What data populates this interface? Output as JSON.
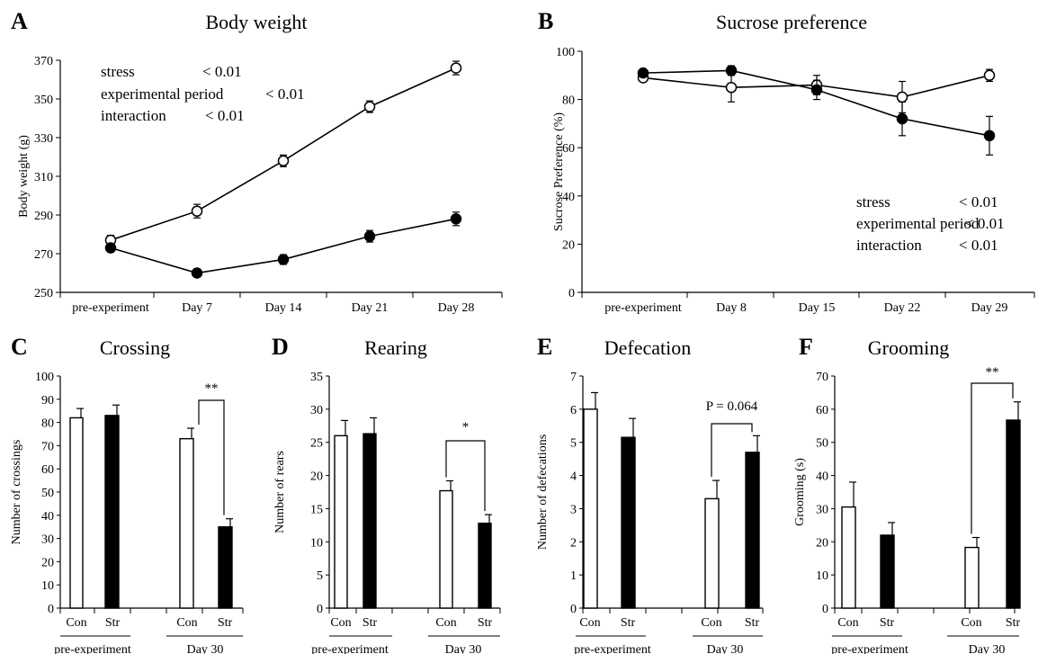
{
  "figure": "multi-panel",
  "chart_data": [
    {
      "panel": "A",
      "type": "line",
      "title": "Body weight",
      "ylabel": "Body weight (g)",
      "ylim": [
        250,
        370
      ],
      "yticks": [
        250,
        270,
        290,
        310,
        330,
        350,
        370
      ],
      "categories": [
        "pre-experiment",
        "Day 7",
        "Day 14",
        "Day 21",
        "Day 28"
      ],
      "series": [
        {
          "marker": "open",
          "values": [
            277,
            292,
            318,
            346,
            366
          ],
          "errors": [
            2.5,
            3.5,
            3,
            3,
            3.5
          ]
        },
        {
          "marker": "filled",
          "values": [
            273,
            260,
            267,
            279,
            288
          ],
          "errors": [
            2,
            2,
            2.5,
            3,
            3.5
          ]
        }
      ],
      "stats": [
        {
          "label": "stress",
          "value": "< 0.01"
        },
        {
          "label": "experimental period",
          "value": "< 0.01"
        },
        {
          "label": "interaction",
          "value": "< 0.01"
        }
      ],
      "grid": false
    },
    {
      "panel": "B",
      "type": "line",
      "title": "Sucrose preference",
      "ylabel": "Sucrose Preference (%)",
      "ylim": [
        0,
        100
      ],
      "yticks": [
        0,
        20,
        40,
        60,
        80,
        100
      ],
      "categories": [
        "pre-experiment",
        "Day 8",
        "Day 15",
        "Day 22",
        "Day 29"
      ],
      "series": [
        {
          "marker": "open",
          "values": [
            89,
            85,
            86,
            81,
            90
          ],
          "errors": [
            1.5,
            6,
            4,
            6.5,
            2.5
          ]
        },
        {
          "marker": "filled",
          "values": [
            91,
            92,
            84,
            72,
            65
          ],
          "errors": [
            1.5,
            2,
            4,
            7,
            8
          ]
        }
      ],
      "stats": [
        {
          "label": "stress",
          "value": "< 0.01"
        },
        {
          "label": "experimental period",
          "value": "< 0.01"
        },
        {
          "label": "interaction",
          "value": "< 0.01"
        }
      ],
      "grid": false
    },
    {
      "panel": "C",
      "type": "bar",
      "title": "Crossing",
      "ylabel": "Number of crossings",
      "ylim": [
        0,
        100
      ],
      "yticks": [
        0,
        10,
        20,
        30,
        40,
        50,
        60,
        70,
        80,
        90,
        100
      ],
      "categories": [
        "Con",
        "Str",
        "Con",
        "Str"
      ],
      "groups": [
        "pre-experiment",
        "Day 30"
      ],
      "values": [
        82,
        83,
        73,
        35
      ],
      "errors": [
        4,
        4.5,
        4.5,
        3.5
      ],
      "fills": [
        "open",
        "filled",
        "open",
        "filled"
      ],
      "significance": "**"
    },
    {
      "panel": "D",
      "type": "bar",
      "title": "Rearing",
      "ylabel": "Number of rears",
      "ylim": [
        0,
        35
      ],
      "yticks": [
        0,
        5,
        10,
        15,
        20,
        25,
        30,
        35
      ],
      "categories": [
        "Con",
        "Str",
        "Con",
        "Str"
      ],
      "groups": [
        "pre-experiment",
        "Day 30"
      ],
      "values": [
        26,
        26.3,
        17.7,
        12.8
      ],
      "errors": [
        2.3,
        2.4,
        1.5,
        1.3
      ],
      "fills": [
        "open",
        "filled",
        "open",
        "filled"
      ],
      "significance": "*"
    },
    {
      "panel": "E",
      "type": "bar",
      "title": "Defecation",
      "ylabel": "Number of defecations",
      "ylim": [
        0,
        7
      ],
      "yticks": [
        0,
        1,
        2,
        3,
        4,
        5,
        6,
        7
      ],
      "categories": [
        "Con",
        "Str",
        "Con",
        "Str"
      ],
      "groups": [
        "pre-experiment",
        "Day 30"
      ],
      "values": [
        6,
        5.15,
        3.3,
        4.7
      ],
      "errors": [
        0.5,
        0.57,
        0.55,
        0.5
      ],
      "fills": [
        "open",
        "filled",
        "open",
        "filled"
      ],
      "significance": "P = 0.064"
    },
    {
      "panel": "F",
      "type": "bar",
      "title": "Grooming",
      "ylabel": "Grooming (s)",
      "ylim": [
        0,
        70
      ],
      "yticks": [
        0,
        10,
        20,
        30,
        40,
        50,
        60,
        70
      ],
      "categories": [
        "Con",
        "Str",
        "Con",
        "Str"
      ],
      "groups": [
        "pre-experiment",
        "Day 30"
      ],
      "values": [
        30.5,
        22,
        18.3,
        56.7
      ],
      "errors": [
        7.5,
        3.8,
        3,
        5.5
      ],
      "fills": [
        "open",
        "filled",
        "open",
        "filled"
      ],
      "significance": "**"
    }
  ]
}
